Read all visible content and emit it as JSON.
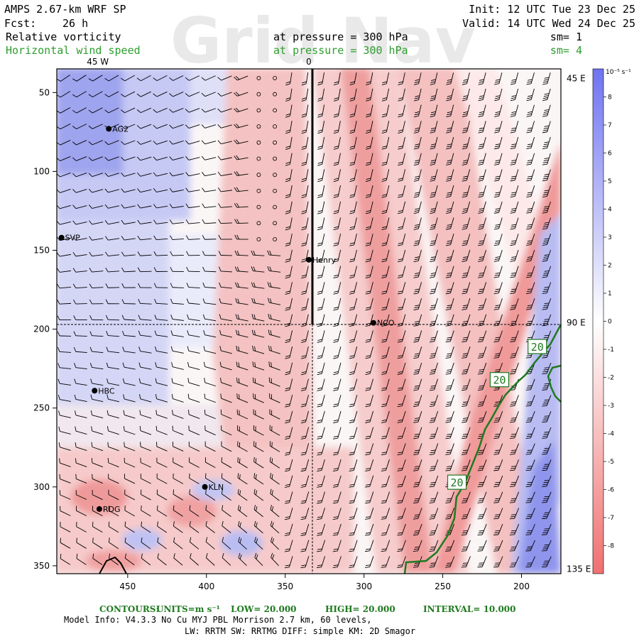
{
  "colors": {
    "contour": "#1f7a1f",
    "label_green": "#2e9e2e",
    "positive_max": "#6f73f0",
    "negative_max": "#f07070",
    "barb": "#000000"
  },
  "header": {
    "model": "AMPS 2.67-km WRF SP",
    "fcst_label": "Fcst:",
    "fcst_value": "26 h",
    "init": "Init: 12 UTC Tue 23 Dec 25",
    "valid": "Valid: 14 UTC Wed 24 Dec 25",
    "field1": "Relative vorticity",
    "field2": "Horizontal wind speed",
    "pressure1": "at pressure =  300 hPa",
    "pressure2": "at pressure =  300 hPa",
    "sm1": "sm= 1",
    "sm2": "sm= 4",
    "watermark": "Grid Nav"
  },
  "chart_data": {
    "type": "heatmap",
    "title": "Relative vorticity at 300 hPa with horizontal wind barbs and wind speed contours",
    "xlim": [
      495,
      175
    ],
    "ylim": [
      35,
      355
    ],
    "x_ticks": [
      450,
      400,
      350,
      300,
      250,
      200
    ],
    "y_ticks": [
      50,
      100,
      150,
      200,
      250,
      300,
      350
    ],
    "top_labels": [
      {
        "x": 469,
        "text": "45 W"
      },
      {
        "x": 335,
        "text": "0"
      }
    ],
    "right_labels": [
      {
        "y": 41,
        "text": "45 E"
      },
      {
        "y": 196,
        "text": "90 E"
      },
      {
        "y": 352,
        "text": "135 E"
      }
    ],
    "colorbar": {
      "unit": "10⁻⁵ s⁻¹",
      "levels": [
        8,
        7,
        6,
        5,
        4,
        3,
        2,
        1,
        0,
        -1,
        -2,
        -3,
        -4,
        -5,
        -6,
        -7,
        -8
      ],
      "min": -9,
      "max": 9
    },
    "stations": [
      {
        "name": "AG2",
        "x": 462,
        "y": 73
      },
      {
        "name": "SVP",
        "x": 492,
        "y": 142
      },
      {
        "name": "Henry",
        "x": 335,
        "y": 156
      },
      {
        "name": "NCO",
        "x": 294,
        "y": 196
      },
      {
        "name": "HBC",
        "x": 471,
        "y": 239
      },
      {
        "name": "KLN",
        "x": 401,
        "y": 300
      },
      {
        "name": "RDG",
        "x": 468,
        "y": 314
      }
    ],
    "contour_level_labels": [
      {
        "text": "20",
        "x": 190,
        "y": 211
      },
      {
        "text": "20",
        "x": 214,
        "y": 232
      },
      {
        "text": "20",
        "x": 241,
        "y": 297
      }
    ],
    "contours": {
      "low": 20.0,
      "high": 20.0,
      "interval": 10.0,
      "units": "m s⁻¹"
    }
  },
  "footer": {
    "contours_label": "CONTOURS:",
    "units_label": "UNITS=m s⁻¹",
    "low_label": "LOW=  20.000",
    "high_label": "HIGH=  20.000",
    "interval_label": "INTERVAL=   10.000",
    "model_info": "Model Info: V4.3.3   No Cu   MYJ PBL  Morrison          2.7 km,  60 levels,",
    "model_info2": "LW: RRTM SW: RRTMG   DIFF: simple KM: 2D Smagor"
  }
}
